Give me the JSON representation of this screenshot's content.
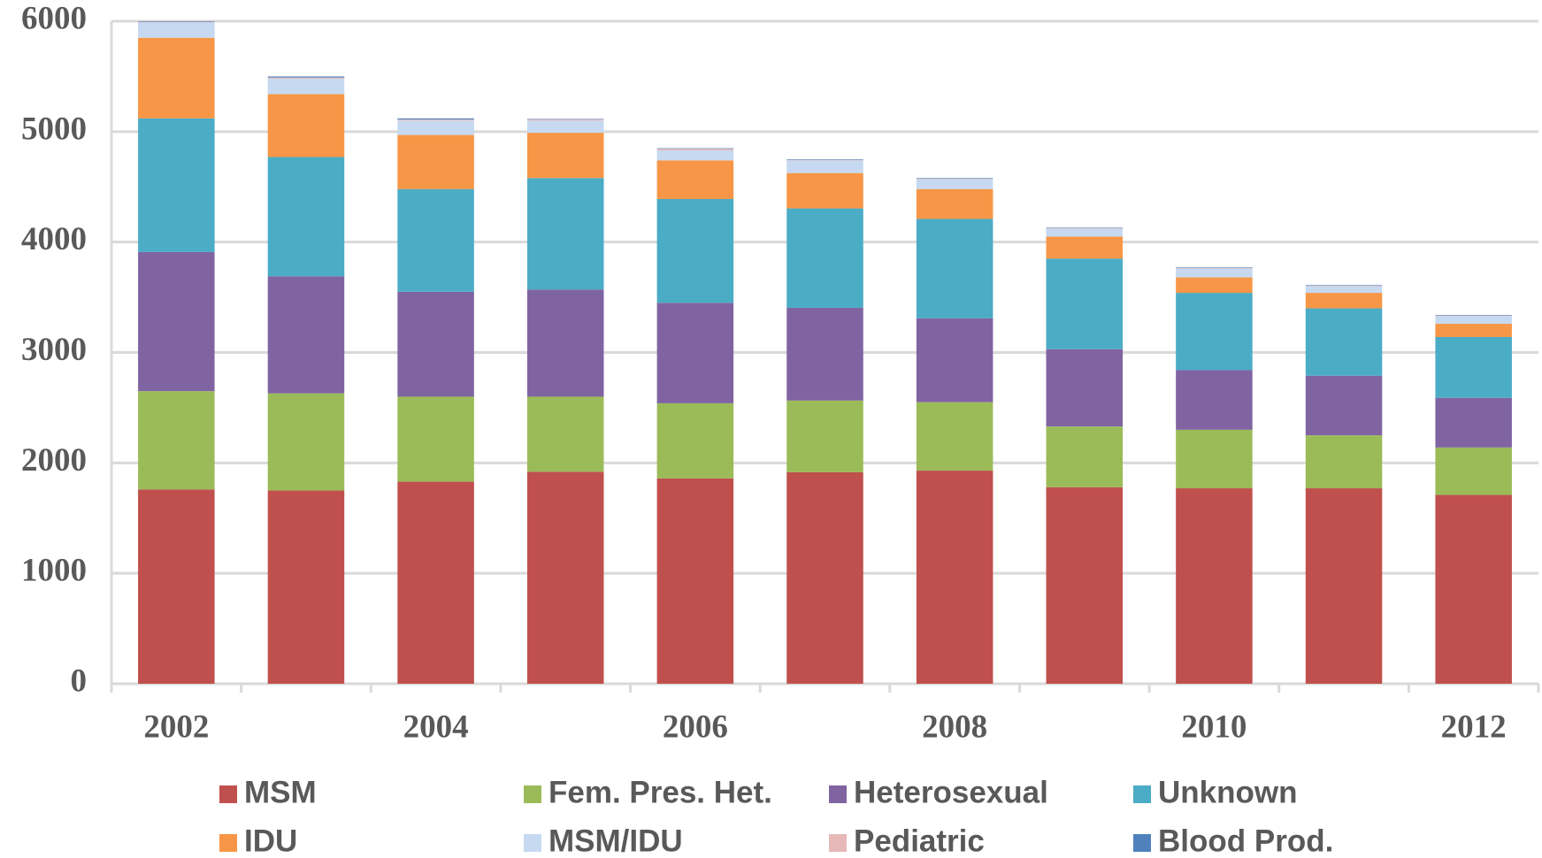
{
  "chart_data": {
    "type": "stacked_bar",
    "categories": [
      "2002",
      null,
      "2004",
      null,
      "2006",
      null,
      "2008",
      null,
      "2010",
      null,
      "2012"
    ],
    "series": [
      {
        "name": "MSM",
        "color": "#c0504d",
        "values": [
          1760,
          1750,
          1830,
          1920,
          1860,
          1915,
          1930,
          1780,
          1770,
          1770,
          1710
        ]
      },
      {
        "name": "Fem. Pres. Het.",
        "color": "#9bbb59",
        "values": [
          890,
          880,
          770,
          680,
          680,
          650,
          620,
          550,
          530,
          480,
          430
        ]
      },
      {
        "name": "Heterosexual",
        "color": "#8064a2",
        "values": [
          1260,
          1060,
          950,
          970,
          910,
          840,
          760,
          700,
          540,
          540,
          450
        ]
      },
      {
        "name": "Unknown",
        "color": "#4bacc6",
        "values": [
          1210,
          1080,
          930,
          1010,
          940,
          900,
          900,
          820,
          700,
          610,
          550
        ]
      },
      {
        "name": "IDU",
        "color": "#f79646",
        "values": [
          730,
          570,
          490,
          410,
          350,
          320,
          270,
          200,
          140,
          140,
          120
        ]
      },
      {
        "name": "MSM/IDU",
        "color": "#c6d9f1",
        "values": [
          140,
          140,
          130,
          110,
          90,
          115,
          90,
          70,
          80,
          60,
          70
        ]
      },
      {
        "name": "Pediatric",
        "color": "#e6b9b8",
        "values": [
          5,
          10,
          10,
          10,
          15,
          5,
          5,
          5,
          5,
          5,
          5
        ]
      },
      {
        "name": "Blood Prod.",
        "color": "#4f81bd",
        "values": [
          5,
          10,
          10,
          5,
          5,
          5,
          5,
          5,
          5,
          5,
          5
        ]
      }
    ],
    "ylim": [
      0,
      6000
    ],
    "yticks": [
      0,
      1000,
      2000,
      3000,
      4000,
      5000,
      6000
    ],
    "grid": true
  }
}
